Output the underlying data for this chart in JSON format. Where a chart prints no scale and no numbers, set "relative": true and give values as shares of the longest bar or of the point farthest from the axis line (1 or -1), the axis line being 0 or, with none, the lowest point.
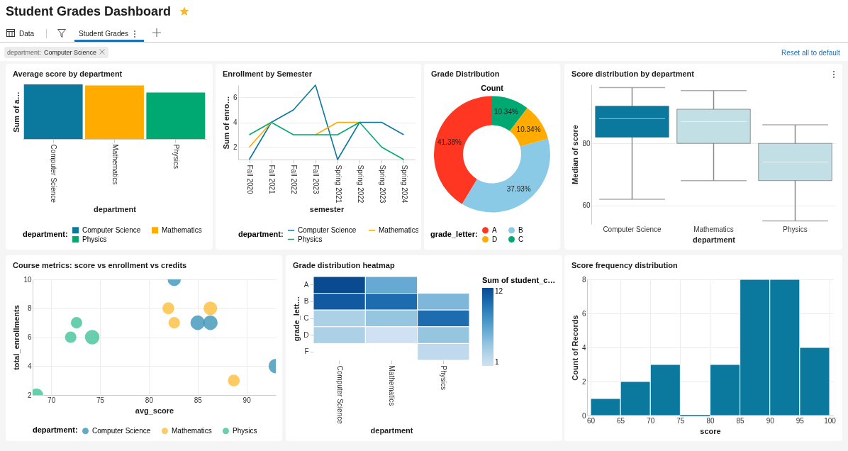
{
  "chart_data": [
    {
      "type": "other",
      "title": "Student Grades Dashboard",
      "annotations": [
        "Data",
        "Student Grades",
        "department:",
        "Computer Science",
        "Reset all to default"
      ]
    },
    {
      "type": "bar",
      "title": "Average score by department",
      "xlabel": "department",
      "ylabel": "Sum of a…",
      "categories": [
        "Computer Science",
        "Mathematics",
        "Physics"
      ],
      "relative": true,
      "stacked": true,
      "legend": "bottom",
      "legend_title": "department:",
      "series": [
        {
          "name": "Computer Science",
          "color": "#0b789e",
          "values": [
            1,
            null,
            null
          ]
        },
        {
          "name": "Mathematics",
          "color": "#ffab00",
          "values": [
            null,
            0.98,
            null
          ]
        },
        {
          "name": "Physics",
          "color": "#00a972",
          "values": [
            null,
            null,
            0.85
          ]
        }
      ]
    },
    {
      "type": "line",
      "title": "Enrollment by Semester",
      "xlabel": "semester",
      "ylabel": "Sum of enro…",
      "categories": [
        "Fall 2020",
        "Fall 2021",
        "Fall 2022",
        "Fall 2023",
        "Spring 2021",
        "Spring 2022",
        "Spring 2023",
        "Spring 2024"
      ],
      "ylim": [
        1,
        7
      ],
      "yticks": [
        2,
        4,
        6
      ],
      "grid": "y",
      "legend": "bottom",
      "legend_title": "department:",
      "series": [
        {
          "name": "Computer Science",
          "color": "#0b789e",
          "values": [
            1,
            4,
            5,
            7,
            1,
            4,
            4,
            3
          ]
        },
        {
          "name": "Mathematics",
          "color": "#ffab00",
          "values": [
            2,
            4,
            null,
            3,
            4,
            4,
            null,
            null
          ]
        },
        {
          "name": "Physics",
          "color": "#00a972",
          "values": [
            3,
            4,
            3,
            3,
            3,
            4,
            2,
            1
          ]
        }
      ]
    },
    {
      "type": "donut",
      "title": "Grade Distribution",
      "subtitle": "Count",
      "categories": [
        "A",
        "B",
        "D",
        "C"
      ],
      "values": [
        41.38,
        37.93,
        10.34,
        10.34
      ],
      "colors": [
        "#ff3621",
        "#8bcae7",
        "#ffab00",
        "#00a972"
      ],
      "value_labels": [
        "41.38%",
        "37.93%",
        "10.34%",
        "10.34%"
      ],
      "legend": "bottom",
      "legend_title": "grade_letter:"
    },
    {
      "type": "box",
      "title": "Score distribution by department",
      "xlabel": "department",
      "ylabel": "Median of score",
      "categories": [
        "Computer Science",
        "Mathematics",
        "Physics"
      ],
      "colors": [
        "#0b789e",
        "#c2dfe6",
        "#c2dfe6"
      ],
      "ylim": [
        54,
        99
      ],
      "yticks": [
        60,
        80
      ],
      "grid": "y",
      "boxes": [
        {
          "low": 62,
          "q1": 82,
          "median": 88,
          "q3": 92,
          "high": 98
        },
        {
          "low": 68,
          "q1": 80,
          "median": 87,
          "q3": 91,
          "high": 97
        },
        {
          "low": 55,
          "q1": 68,
          "median": 74,
          "q3": 80,
          "high": 86
        }
      ]
    },
    {
      "type": "bubble",
      "title": "Course metrics: score vs enrollment vs credits",
      "xlabel": "avg_score",
      "ylabel": "total_enrollments",
      "xlim": [
        68.1,
        93
      ],
      "xticks": [
        70,
        75,
        80,
        85,
        90
      ],
      "ylim": [
        2,
        10
      ],
      "yticks": [
        2,
        4,
        6,
        8,
        10
      ],
      "grid": true,
      "legend": "bottom",
      "legend_title": "department:",
      "series": [
        {
          "name": "Computer Science",
          "color": "#3f97b8",
          "x": [
            82.6,
            85,
            86.3,
            93
          ],
          "values": [
            10,
            7,
            7,
            4
          ],
          "sizes": [
            0.83,
            1,
            1,
            1
          ]
        },
        {
          "name": "Mathematics",
          "color": "#fcc03f",
          "x": [
            82,
            82.6,
            86.3,
            88.7
          ],
          "values": [
            8,
            7,
            8,
            3
          ],
          "sizes": [
            0.67,
            0.62,
            0.88,
            0.67
          ]
        },
        {
          "name": "Physics",
          "color": "#45c49a",
          "x": [
            68.5,
            72,
            72.6,
            74.2
          ],
          "values": [
            2,
            6,
            7,
            6
          ],
          "sizes": [
            0.83,
            0.62,
            0.62,
            1
          ]
        }
      ]
    },
    {
      "type": "heatmap",
      "title": "Grade distribution heatmap",
      "xlabel": "department",
      "ylabel": "grade_lett…",
      "clabel": "Sum of student_c…",
      "categories": [
        "Computer Science",
        "Mathematics",
        "Physics"
      ],
      "y_categories": [
        "A",
        "B",
        "C",
        "D",
        "F"
      ],
      "clim": [
        1,
        12
      ],
      "cticks": [
        1,
        12
      ],
      "cells": [
        [
          12,
          6,
          null
        ],
        [
          11,
          10,
          5
        ],
        [
          3,
          4,
          10
        ],
        [
          3,
          1,
          4
        ],
        [
          null,
          null,
          2
        ]
      ]
    },
    {
      "type": "histogram",
      "title": "Score frequency distribution",
      "xlabel": "score",
      "ylabel": "Count of Records",
      "bins": [
        60,
        65,
        70,
        75,
        80,
        85,
        90,
        95,
        100
      ],
      "values": [
        1,
        2,
        3,
        0,
        3,
        8,
        8,
        4
      ],
      "color": "#0b789e",
      "xlim": [
        60,
        100
      ],
      "xticks": [
        60,
        65,
        70,
        75,
        80,
        85,
        90,
        95,
        100
      ],
      "ylim": [
        0,
        8
      ],
      "yticks": [
        0,
        2,
        4,
        6,
        8
      ],
      "grid": true
    }
  ]
}
